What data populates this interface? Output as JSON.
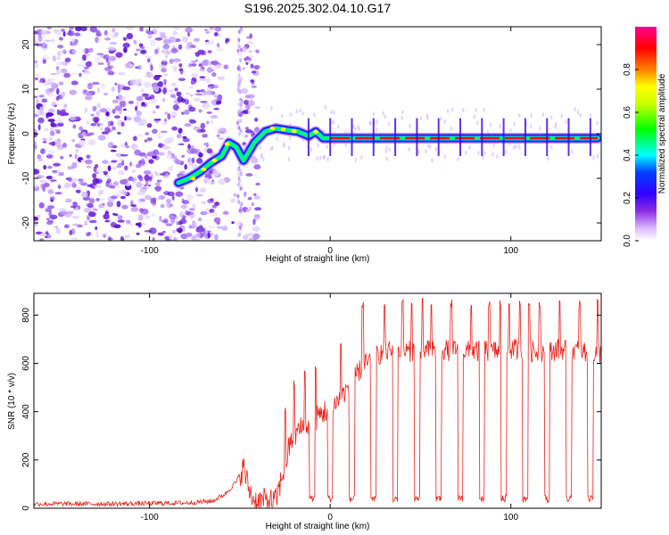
{
  "title": "S196.2025.302.04.10.G17",
  "chart_data": [
    {
      "type": "heatmap",
      "name": "spectrogram",
      "xlabel": "Height of straight line (km)",
      "ylabel": "Frequency (Hz)",
      "xlim": [
        -164,
        150
      ],
      "ylim": [
        -24,
        24
      ],
      "xticks": [
        -100,
        0,
        100
      ],
      "yticks": [
        -20,
        -10,
        0,
        10,
        20
      ],
      "colorbar": {
        "label": "Normalized spectral amplitude",
        "range": [
          0,
          1
        ],
        "ticks": [
          0.0,
          0.2,
          0.4,
          0.6,
          0.8
        ],
        "colors": [
          "#ffffff",
          "#c080ff",
          "#6000ff",
          "#0000ff",
          "#00ffff",
          "#00ff00",
          "#ffff00",
          "#ff8000",
          "#ff0000",
          "#ff0080"
        ]
      },
      "trace": {
        "x": [
          -84,
          -78,
          -72,
          -66,
          -60,
          -56,
          -52,
          -48,
          -42,
          -36,
          -30,
          -24,
          -18,
          -12,
          -8,
          -4,
          0,
          20,
          40,
          60,
          80,
          100,
          120,
          148
        ],
        "y": [
          -11,
          -10,
          -8.5,
          -6.5,
          -5,
          -2,
          -3,
          -6,
          -2,
          0.5,
          1.2,
          0.8,
          0.5,
          -0.5,
          0.5,
          -1,
          -1,
          -1,
          -1,
          -1,
          -1,
          -1,
          -1,
          -1
        ]
      }
    },
    {
      "type": "line",
      "name": "snr",
      "xlabel": "Height of straight line (km)",
      "ylabel": "SNR (10 * v/v)",
      "xlim": [
        -164,
        150
      ],
      "ylim": [
        0,
        890
      ],
      "xticks": [
        -100,
        0,
        100
      ],
      "yticks": [
        0,
        200,
        400,
        600,
        800
      ],
      "color": "#e8221b",
      "baseline": {
        "x": [
          -164,
          -120,
          -80,
          -65,
          -58,
          -52,
          -48,
          -45,
          -42,
          -38,
          -30,
          -26,
          -22,
          -18,
          -10,
          -5,
          0,
          5,
          10,
          15,
          20,
          25,
          30,
          40,
          50,
          60,
          70,
          80,
          90,
          100,
          110,
          120,
          130,
          140,
          150
        ],
        "y": [
          18,
          18,
          22,
          30,
          60,
          110,
          170,
          80,
          30,
          30,
          30,
          150,
          270,
          320,
          360,
          390,
          420,
          450,
          500,
          560,
          600,
          630,
          650,
          650,
          650,
          660,
          650,
          650,
          650,
          660,
          650,
          650,
          660,
          650,
          640
        ]
      },
      "spikes": [
        -25,
        -20,
        -14,
        -8,
        -1,
        6,
        12,
        18,
        24,
        30,
        35,
        40,
        45,
        51,
        56,
        61,
        67,
        72,
        78,
        83,
        88,
        94,
        99,
        105,
        110,
        116,
        121,
        127,
        132,
        138,
        143,
        148
      ],
      "dropouts": [
        -10,
        0,
        12,
        24,
        36,
        48,
        60,
        72,
        84,
        96,
        108,
        120,
        132,
        144
      ]
    }
  ]
}
